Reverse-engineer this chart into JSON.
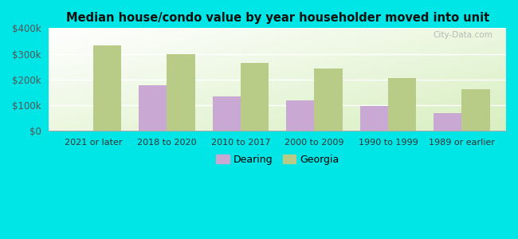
{
  "title": "Median house/condo value by year householder moved into unit",
  "categories": [
    "2021 or later",
    "2018 to 2020",
    "2010 to 2017",
    "2000 to 2009",
    "1990 to 1999",
    "1989 or earlier"
  ],
  "dearing_values": [
    0,
    178000,
    135000,
    120000,
    97000,
    68000
  ],
  "georgia_values": [
    332000,
    300000,
    265000,
    243000,
    207000,
    163000
  ],
  "dearing_color": "#c9a8d4",
  "georgia_color": "#b8cc88",
  "background_top_left": "#ffffff",
  "background_bottom_right": "#d8efc0",
  "outer_background": "#00e5e5",
  "ylim": [
    0,
    400000
  ],
  "yticks": [
    0,
    100000,
    200000,
    300000,
    400000
  ],
  "ytick_labels": [
    "$0",
    "$100k",
    "$200k",
    "$300k",
    "$400k"
  ],
  "bar_width": 0.38,
  "watermark": "City-Data.com",
  "legend_labels": [
    "Dearing",
    "Georgia"
  ]
}
